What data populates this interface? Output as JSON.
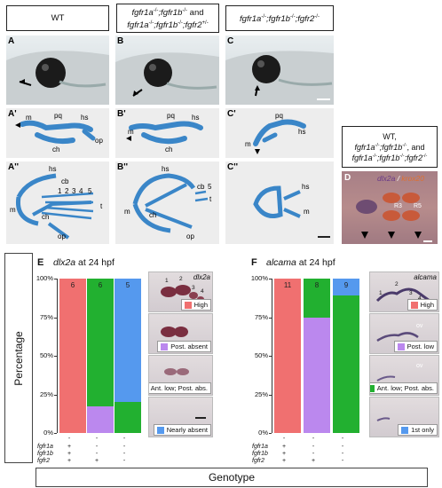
{
  "headers": {
    "wt": "WT",
    "b_line1": "fgfr1a",
    "b_line1_sup": "-/-",
    "b_line1b": ";fgfr1b",
    "b_line1b_sup": "-/-",
    "b_and": " and",
    "b_line2": "fgfr1a",
    "b_line2_sup": "-/-",
    "b_line2b": ";fgfr1b",
    "b_line2b_sup": "-/-",
    "b_line2c": ";fgfr2",
    "b_line2c_sup": "+/-",
    "c_line1": "fgfr1a",
    "c_line1_sup": "-/-",
    "c_line1b": ";fgfr1b",
    "c_line1b_sup": "-/-",
    "c_line1c": ";fgfr2",
    "c_line1c_sup": "-/-",
    "d_l1": "WT,",
    "d_l2a": "fgfr1a",
    "d_l2a_sup": "-/-",
    "d_l2b": ";fgfr1b",
    "d_l2b_sup": "-/-",
    "d_l2c": ", and",
    "d_l3a": "fgfr1a",
    "d_l3a_sup": "-/-",
    "d_l3b": ";fgfr1b",
    "d_l3b_sup": "-/-",
    "d_l3c": ";fgfr2",
    "d_l3c_sup": "-/-"
  },
  "panel_labels": {
    "A": "A",
    "B": "B",
    "C": "C",
    "A1": "A'",
    "B1": "B'",
    "C1": "C'",
    "A2": "A''",
    "B2": "B''",
    "C2": "C''",
    "D": "D",
    "E": "E",
    "F": "F"
  },
  "cart_labels": {
    "m": "m",
    "pq": "pq",
    "hs": "hs",
    "op": "op",
    "ch": "ch",
    "cb": "cb",
    "t": "t",
    "n1": "1",
    "n2": "2",
    "n3": "3",
    "n4": "4",
    "n5": "5"
  },
  "d_panel": {
    "gene1": "dlx2a",
    "slash": " / ",
    "gene2": "krox20",
    "r3": "R3",
    "r5": "R5",
    "gene1_color": "#8a5aa8",
    "gene2_color": "#d0602a"
  },
  "ylabel": "Percentage",
  "xlabel": "Genotype",
  "genotype_rows": [
    "fgfr1a",
    "fgfr1b",
    "fgfr2"
  ],
  "genotype_values": [
    [
      "+",
      "-",
      "-"
    ],
    [
      "+",
      "-",
      "-"
    ],
    [
      "+",
      "+",
      "-"
    ]
  ],
  "genotype_values_alt": [
    [
      "+",
      "-",
      "-"
    ],
    [
      "+",
      "-",
      "-"
    ],
    [
      "+",
      "+",
      "-"
    ]
  ],
  "yticks": [
    "100%",
    "75%",
    "50%",
    "25%",
    "0%"
  ],
  "E": {
    "title_gene": "dlx2a",
    "title_rest": " at 24 hpf",
    "inset_gene": "dlx2a",
    "inset_nums": [
      "1",
      "2",
      "3",
      "4"
    ],
    "legends": [
      "High",
      "Post. absent",
      "Ant. low; Post. abs.",
      "Nearly absent"
    ]
  },
  "F": {
    "title_gene": "alcama",
    "title_rest": " at 24 hpf",
    "inset_gene": "alcama",
    "inset_nums": [
      "1",
      "2",
      "3",
      "4"
    ],
    "ov": "ov",
    "legends": [
      "High",
      "Post. low",
      "Ant. low; Post. abs.",
      "1st only"
    ]
  },
  "colors": {
    "high": "#f07070",
    "post": "#bb88ee",
    "ant": "#22b030",
    "near": "#5599ee",
    "cart": "#3a86c8"
  },
  "chart_data": [
    {
      "type": "bar",
      "title": "dlx2a at 24 hpf",
      "ylabel": "Percentage",
      "xlabel": "Genotype",
      "ylim": [
        0,
        100
      ],
      "categories": [
        "fgfr1a+ fgfr1b+ fgfr2+",
        "fgfr1a- fgfr1b- fgfr2+",
        "fgfr1a- fgfr1b- fgfr2-"
      ],
      "counts": [
        6,
        6,
        5
      ],
      "series": [
        {
          "name": "High",
          "values": [
            100,
            0,
            0
          ]
        },
        {
          "name": "Post. absent",
          "values": [
            0,
            17,
            0
          ]
        },
        {
          "name": "Ant. low; Post. abs.",
          "values": [
            0,
            83,
            20
          ]
        },
        {
          "name": "Nearly absent",
          "values": [
            0,
            0,
            80
          ]
        }
      ]
    },
    {
      "type": "bar",
      "title": "alcama at 24 hpf",
      "ylabel": "Percentage",
      "xlabel": "Genotype",
      "ylim": [
        0,
        100
      ],
      "categories": [
        "fgfr1a+ fgfr1b+ fgfr2+",
        "fgfr1a- fgfr1b- fgfr2+",
        "fgfr1a- fgfr1b- fgfr2-"
      ],
      "counts": [
        11,
        8,
        9
      ],
      "series": [
        {
          "name": "High",
          "values": [
            100,
            0,
            0
          ]
        },
        {
          "name": "Post. low",
          "values": [
            0,
            75,
            0
          ]
        },
        {
          "name": "Ant. low; Post. abs.",
          "values": [
            0,
            25,
            89
          ]
        },
        {
          "name": "1st only",
          "values": [
            0,
            0,
            11
          ]
        }
      ]
    }
  ]
}
